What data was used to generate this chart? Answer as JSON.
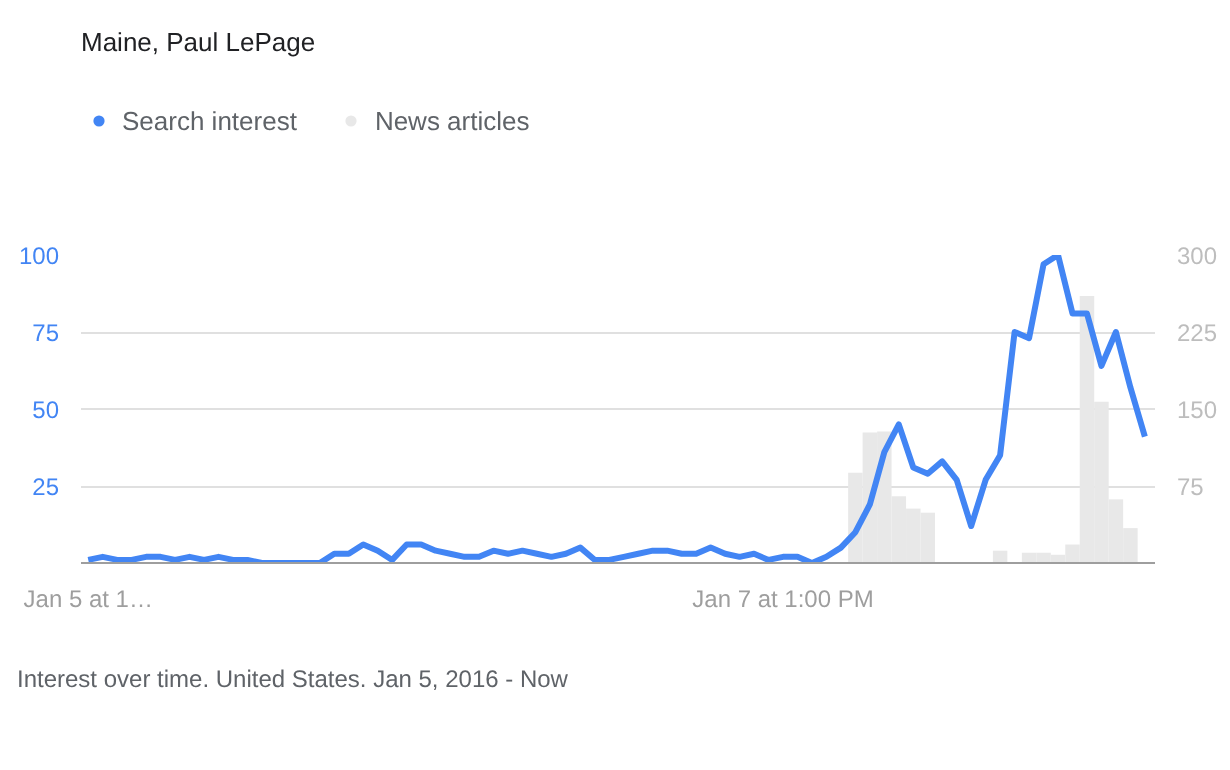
{
  "chart_data": {
    "type": "line",
    "title": "Maine, Paul LePage",
    "categories": [
      "Jan 5 at 1…",
      null,
      null,
      null,
      null,
      null,
      null,
      null,
      null,
      null,
      null,
      null,
      null,
      null,
      null,
      null,
      null,
      null,
      null,
      null,
      null,
      null,
      null,
      null,
      null,
      null,
      null,
      null,
      null,
      null,
      null,
      null,
      null,
      null,
      null,
      null,
      null,
      null,
      null,
      null,
      null,
      null,
      null,
      null,
      null,
      null,
      null,
      null,
      "Jan 7 at 1:00 PM",
      null,
      null,
      null,
      null,
      null,
      null,
      null,
      null,
      null,
      null,
      null,
      null,
      null,
      null,
      null,
      null,
      null,
      null,
      null,
      null,
      null,
      null,
      null,
      null,
      null
    ],
    "series": [
      {
        "name": "Search interest",
        "color": "#4285f4",
        "values": [
          1,
          2,
          1,
          1,
          2,
          2,
          1,
          2,
          1,
          2,
          1,
          1,
          0,
          0,
          0,
          0,
          0,
          3,
          3,
          6,
          4,
          1,
          6,
          6,
          4,
          3,
          2,
          2,
          4,
          3,
          4,
          3,
          2,
          3,
          5,
          1,
          1,
          2,
          3,
          4,
          4,
          3,
          3,
          5,
          3,
          2,
          3,
          1,
          2,
          2,
          0,
          2,
          5,
          10,
          19,
          36,
          45,
          31,
          29,
          33,
          27,
          12,
          27,
          35,
          75,
          73,
          97,
          100,
          81,
          81,
          64,
          75,
          57,
          41
        ]
      },
      {
        "name": "News articles",
        "color": "#e8e8e8",
        "type": "bar",
        "axis": "y2",
        "values": [
          null,
          null,
          null,
          null,
          null,
          null,
          null,
          null,
          null,
          null,
          null,
          null,
          null,
          null,
          null,
          null,
          null,
          null,
          null,
          null,
          null,
          null,
          null,
          null,
          null,
          null,
          null,
          null,
          null,
          null,
          null,
          null,
          null,
          null,
          null,
          null,
          null,
          null,
          null,
          null,
          null,
          null,
          null,
          null,
          null,
          null,
          null,
          null,
          null,
          null,
          null,
          null,
          null,
          88,
          127,
          128,
          65,
          53,
          49,
          null,
          null,
          null,
          null,
          12,
          null,
          10,
          10,
          8,
          18,
          260,
          157,
          62,
          34,
          null
        ]
      }
    ],
    "ylim": [
      0,
      100
    ],
    "yticks": [
      25,
      50,
      75,
      100
    ],
    "y2lim": [
      0,
      300
    ],
    "y2ticks": [
      75,
      150,
      225,
      300
    ],
    "grid": "y",
    "legend": "top left",
    "annotations": [
      "Interest over time. United States. Jan 5, 2016 - Now"
    ]
  }
}
